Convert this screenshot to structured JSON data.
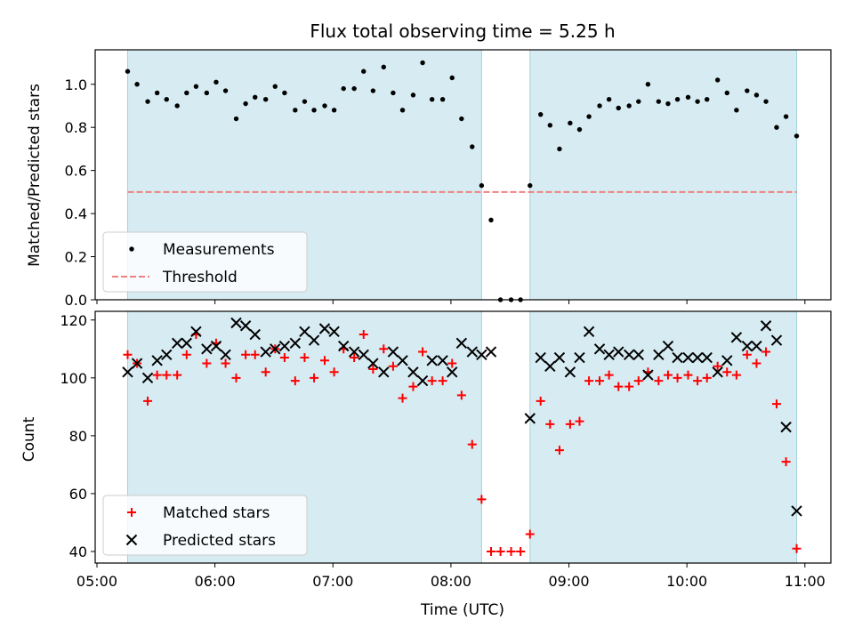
{
  "chart_data": [
    {
      "type": "scatter",
      "title": "Flux total observing time = 5.25 h",
      "xlabel": "",
      "ylabel": "Matched/Predicted stars",
      "xlim": [
        4.985,
        11.22
      ],
      "ylim": [
        0.0,
        1.16
      ],
      "yticks": [
        0.0,
        0.2,
        0.4,
        0.6,
        0.8,
        1.0
      ],
      "yticklabels": [
        "0.0",
        "0.2",
        "0.4",
        "0.6",
        "0.8",
        "1.0"
      ],
      "shaded_intervals": [
        [
          5.26,
          8.26
        ],
        [
          8.67,
          10.93
        ]
      ],
      "legend": {
        "placement": "lower-left",
        "entries": [
          "Measurements",
          "Threshold"
        ]
      },
      "threshold": {
        "label": "Threshold",
        "y": 0.5,
        "x": [
          5.26,
          10.93
        ],
        "color": "#f08080"
      },
      "series": [
        {
          "name": "Measurements",
          "marker": "dot",
          "color": "#000000",
          "x": [
            5.26,
            5.34,
            5.43,
            5.51,
            5.59,
            5.68,
            5.76,
            5.84,
            5.93,
            6.01,
            6.09,
            6.18,
            6.26,
            6.34,
            6.43,
            6.51,
            6.59,
            6.68,
            6.76,
            6.84,
            6.93,
            7.01,
            7.09,
            7.18,
            7.26,
            7.34,
            7.43,
            7.51,
            7.59,
            7.68,
            7.76,
            7.84,
            7.93,
            8.01,
            8.09,
            8.18,
            8.26,
            8.34,
            8.42,
            8.51,
            8.59,
            8.67,
            8.76,
            8.84,
            8.92,
            9.01,
            9.09,
            9.17,
            9.26,
            9.34,
            9.42,
            9.51,
            9.59,
            9.67,
            9.76,
            9.84,
            9.92,
            10.01,
            10.09,
            10.17,
            10.26,
            10.34,
            10.42,
            10.51,
            10.59,
            10.67,
            10.76,
            10.84,
            10.93
          ],
          "y": [
            1.06,
            1.0,
            0.92,
            0.96,
            0.93,
            0.9,
            0.96,
            0.99,
            0.96,
            1.01,
            0.97,
            0.84,
            0.91,
            0.94,
            0.93,
            0.99,
            0.96,
            0.88,
            0.92,
            0.88,
            0.9,
            0.88,
            0.98,
            0.98,
            1.06,
            0.97,
            1.08,
            0.96,
            0.88,
            0.95,
            1.1,
            0.93,
            0.93,
            1.03,
            0.84,
            0.71,
            0.53,
            0.37,
            0.0,
            0.0,
            0.0,
            0.53,
            0.86,
            0.81,
            0.7,
            0.82,
            0.79,
            0.85,
            0.9,
            0.93,
            0.89,
            0.9,
            0.92,
            1.0,
            0.92,
            0.91,
            0.93,
            0.94,
            0.92,
            0.93,
            1.02,
            0.96,
            0.88,
            0.97,
            0.95,
            0.92,
            0.8,
            0.85,
            0.76
          ]
        }
      ]
    },
    {
      "type": "scatter",
      "title": "",
      "xlabel": "Time (UTC)",
      "ylabel": "Count",
      "xlim": [
        4.985,
        11.22
      ],
      "ylim": [
        36.0,
        123.0
      ],
      "xticks": [
        5,
        6,
        7,
        8,
        9,
        10,
        11
      ],
      "xticklabels": [
        "05:00",
        "06:00",
        "07:00",
        "08:00",
        "09:00",
        "10:00",
        "11:00"
      ],
      "yticks": [
        40,
        60,
        80,
        100,
        120
      ],
      "yticklabels": [
        "40",
        "60",
        "80",
        "100",
        "120"
      ],
      "shaded_intervals": [
        [
          5.26,
          8.26
        ],
        [
          8.67,
          10.93
        ]
      ],
      "legend": {
        "placement": "lower-left",
        "entries": [
          "Matched stars",
          "Predicted stars"
        ]
      },
      "series": [
        {
          "name": "Matched stars",
          "marker": "plus",
          "color": "#ff0000",
          "x": [
            5.26,
            5.34,
            5.43,
            5.51,
            5.59,
            5.68,
            5.76,
            5.84,
            5.93,
            6.01,
            6.09,
            6.18,
            6.26,
            6.34,
            6.43,
            6.51,
            6.59,
            6.68,
            6.76,
            6.84,
            6.93,
            7.01,
            7.09,
            7.18,
            7.26,
            7.34,
            7.43,
            7.51,
            7.59,
            7.68,
            7.76,
            7.84,
            7.93,
            8.01,
            8.09,
            8.18,
            8.26,
            8.34,
            8.42,
            8.51,
            8.59,
            8.67,
            8.76,
            8.84,
            8.92,
            9.01,
            9.09,
            9.17,
            9.26,
            9.34,
            9.42,
            9.51,
            9.59,
            9.67,
            9.76,
            9.84,
            9.92,
            10.01,
            10.09,
            10.17,
            10.26,
            10.34,
            10.42,
            10.51,
            10.59,
            10.67,
            10.76,
            10.84,
            10.93
          ],
          "y": [
            108,
            105,
            92,
            101,
            101,
            101,
            108,
            115,
            105,
            112,
            105,
            100,
            108,
            108,
            102,
            110,
            107,
            99,
            107,
            100,
            106,
            102,
            110,
            107,
            115,
            103,
            110,
            104,
            93,
            97,
            109,
            99,
            99,
            105,
            94,
            77,
            58,
            40,
            40,
            40,
            40,
            46,
            92,
            84,
            75,
            84,
            85,
            99,
            99,
            101,
            97,
            97,
            99,
            102,
            99,
            101,
            100,
            101,
            99,
            100,
            104,
            102,
            101,
            108,
            105,
            109,
            91,
            71,
            41
          ]
        },
        {
          "name": "Predicted stars",
          "marker": "x",
          "color": "#000000",
          "x": [
            5.26,
            5.34,
            5.43,
            5.51,
            5.59,
            5.68,
            5.76,
            5.84,
            5.93,
            6.01,
            6.09,
            6.18,
            6.26,
            6.34,
            6.43,
            6.51,
            6.59,
            6.68,
            6.76,
            6.84,
            6.93,
            7.01,
            7.09,
            7.18,
            7.26,
            7.34,
            7.43,
            7.51,
            7.59,
            7.68,
            7.76,
            7.84,
            7.93,
            8.01,
            8.09,
            8.18,
            8.26,
            8.34,
            8.67,
            8.76,
            8.84,
            8.92,
            9.01,
            9.09,
            9.17,
            9.26,
            9.34,
            9.42,
            9.51,
            9.59,
            9.67,
            9.76,
            9.84,
            9.92,
            10.01,
            10.09,
            10.17,
            10.26,
            10.34,
            10.42,
            10.51,
            10.59,
            10.67,
            10.76,
            10.84,
            10.93
          ],
          "y": [
            102,
            105,
            100,
            106,
            108,
            112,
            112,
            116,
            110,
            111,
            108,
            119,
            118,
            115,
            109,
            110,
            111,
            112,
            116,
            113,
            117,
            116,
            111,
            109,
            108,
            105,
            102,
            109,
            106,
            102,
            99,
            106,
            106,
            102,
            112,
            109,
            108,
            109,
            86,
            107,
            104,
            107,
            102,
            107,
            116,
            110,
            108,
            109,
            108,
            108,
            101,
            108,
            111,
            107,
            107,
            107,
            107,
            102,
            106,
            114,
            111,
            111,
            118,
            113,
            83,
            54
          ]
        }
      ]
    }
  ]
}
